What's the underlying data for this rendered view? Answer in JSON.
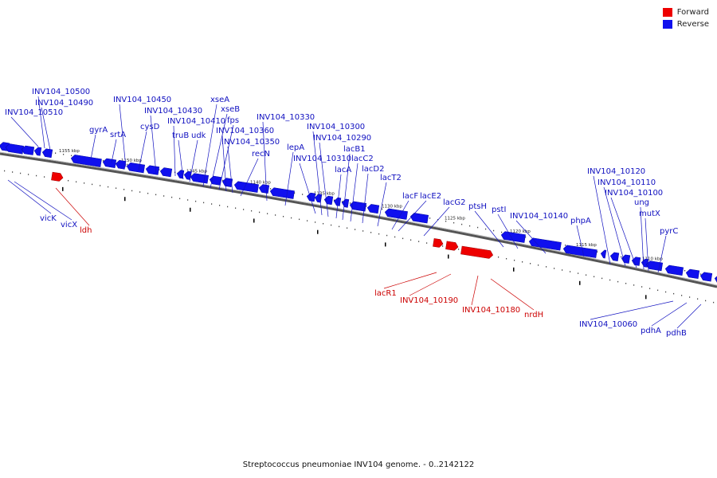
{
  "legend": {
    "forward_label": "Forward",
    "reverse_label": "Reverse",
    "forward_color": "#ee0000",
    "reverse_color": "#1010ee"
  },
  "caption": "Streptococcus pneumoniae INV104 genome. - 0..2142122",
  "scale_labels": [
    "1155 kbp",
    "1150 kbp",
    "1145 kbp",
    "1140 kbp",
    "1135 kbp",
    "1130 kbp",
    "1125 kbp",
    "1120 kbp",
    "1115 kbp",
    "1110 kbp"
  ],
  "reverse_genes_above": [
    "INV104_10510",
    "INV104_10500",
    "INV104_10490",
    "gyrA",
    "srtA",
    "INV104_10450",
    "cysD",
    "INV104_10430",
    "INV104_10410",
    "truB",
    "udk",
    "xseA",
    "xseB",
    "fps",
    "INV104_10360",
    "INV104_10350",
    "recN",
    "INV104_10330",
    "lepA",
    "INV104_10310",
    "INV104_10300",
    "INV104_10290",
    "lacA",
    "lacB1",
    "lacC2",
    "lacD2",
    "lacT2",
    "lacF",
    "lacE2",
    "lacG2",
    "ptsH",
    "pstI",
    "INV104_10140",
    "phpA",
    "INV104_10120",
    "INV104_10110",
    "INV104_10100",
    "ung",
    "mutX",
    "pyrC"
  ],
  "reverse_genes_below": [
    "vicK",
    "vicX",
    "INV104_10060",
    "pdhA",
    "pdhB"
  ],
  "forward_genes_below": [
    "ldh",
    "lacR1",
    "INV104_10190",
    "INV104_10180",
    "nrdH"
  ]
}
